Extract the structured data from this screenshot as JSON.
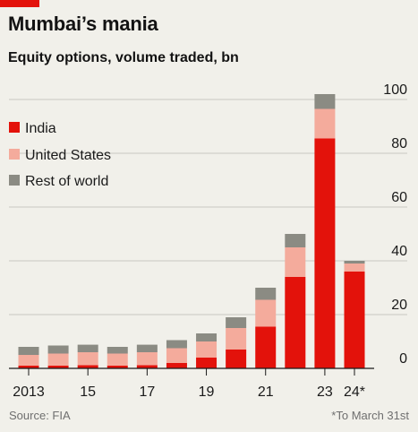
{
  "header": {
    "title": "Mumbai’s mania",
    "subtitle": "Equity options, volume traded, bn"
  },
  "footer": {
    "source": "Source: FIA",
    "footnote": "*To March 31st"
  },
  "colors": {
    "india": "#e3120b",
    "united_states": "#f4ab9c",
    "rest_of_world": "#8b8b83",
    "brand": "#e3120b",
    "gridline": "#c9c9c2"
  },
  "chart_data": {
    "type": "bar",
    "stacked": true,
    "categories": [
      "2013",
      "2014",
      "2015",
      "2016",
      "2017",
      "2018",
      "2019",
      "2020",
      "2021",
      "2022",
      "2023",
      "2024*"
    ],
    "x_tick_labels": [
      "2013",
      "",
      "15",
      "",
      "17",
      "",
      "19",
      "",
      "21",
      "",
      "23",
      "24*"
    ],
    "series": [
      {
        "name": "India",
        "color": "#e3120b",
        "values": [
          1,
          1,
          1.2,
          1,
          1.2,
          2,
          4,
          7,
          15.5,
          34,
          85.5,
          36
        ]
      },
      {
        "name": "United States",
        "color": "#f4ab9c",
        "values": [
          4,
          4.5,
          4.8,
          4.5,
          4.8,
          5.5,
          6,
          8,
          10,
          11,
          11,
          3
        ]
      },
      {
        "name": "Rest of world",
        "color": "#8b8b83",
        "values": [
          3,
          3,
          2.8,
          2.5,
          2.8,
          3,
          3,
          4,
          4.5,
          5,
          5.5,
          1
        ]
      }
    ],
    "ylim": [
      0,
      100
    ],
    "yticks": [
      0,
      20,
      40,
      60,
      80,
      100
    ],
    "grid": true,
    "legend_position": "top-left"
  }
}
